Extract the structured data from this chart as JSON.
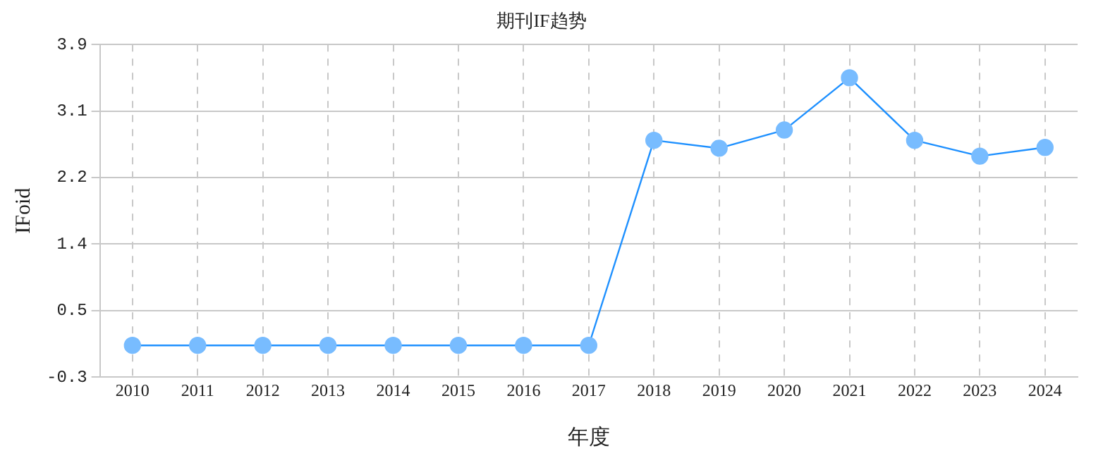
{
  "chart_data": {
    "type": "line",
    "title": "期刊IF趋势",
    "xlabel": "年度",
    "ylabel": "IFoid",
    "categories": [
      "2010",
      "2011",
      "2012",
      "2013",
      "2014",
      "2015",
      "2016",
      "2017",
      "2018",
      "2019",
      "2020",
      "2021",
      "2022",
      "2023",
      "2024"
    ],
    "series": [
      {
        "color": "#1e90ff",
        "values": [
          0.1,
          0.1,
          0.1,
          0.1,
          0.1,
          0.1,
          0.1,
          0.1,
          2.69,
          2.59,
          2.82,
          3.48,
          2.69,
          2.49,
          2.6
        ]
      }
    ],
    "ylim": [
      -0.3,
      3.9
    ],
    "yticks": [
      {
        "value": -0.3,
        "label": "-0.3"
      },
      {
        "value": 0.54,
        "label": "0.5"
      },
      {
        "value": 1.38,
        "label": "1.4"
      },
      {
        "value": 2.22,
        "label": "2.2"
      },
      {
        "value": 3.06,
        "label": "3.1"
      },
      {
        "value": 3.9,
        "label": "3.9"
      }
    ],
    "grid": true,
    "legend": false,
    "marker": "circle",
    "line_style": "solid"
  }
}
